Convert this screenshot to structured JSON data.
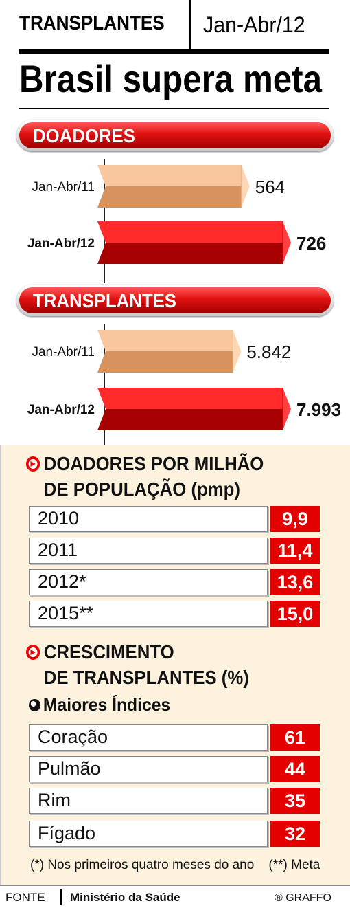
{
  "header": {
    "kicker": "TRANSPLANTES",
    "period": "Jan-Abr/12",
    "headline": "Brasil supera meta"
  },
  "colors": {
    "accent_red": "#e50000",
    "bar_light": "#f2b07e",
    "panel_bg": "#fcf2de"
  },
  "chart_data": [
    {
      "type": "bar",
      "title": "DOADORES",
      "categories": [
        "Jan-Abr/11",
        "Jan-Abr/12"
      ],
      "values": [
        564,
        726
      ],
      "value_labels": [
        "564",
        "726"
      ],
      "orientation": "horizontal",
      "highlight_index": 1
    },
    {
      "type": "bar",
      "title": "TRANSPLANTES",
      "categories": [
        "Jan-Abr/11",
        "Jan-Abr/12"
      ],
      "values": [
        5842,
        7993
      ],
      "value_labels": [
        "5.842",
        "7.993"
      ],
      "orientation": "horizontal",
      "highlight_index": 1
    }
  ],
  "pmp": {
    "title_line1": "DOADORES POR MILHÃO",
    "title_line2": "DE POPULAÇÃO (pmp)",
    "rows": [
      {
        "label": "2010",
        "value": "9,9"
      },
      {
        "label": "2011",
        "value": "11,4"
      },
      {
        "label": "2012*",
        "value": "13,6"
      },
      {
        "label": "2015**",
        "value": "15,0"
      }
    ]
  },
  "growth": {
    "title_line1": "CRESCIMENTO",
    "title_line2": "DE TRANSPLANTES (%)",
    "subtitle": "Maiores Índices",
    "rows": [
      {
        "label": "Coração",
        "value": "61"
      },
      {
        "label": "Pulmão",
        "value": "44"
      },
      {
        "label": "Rim",
        "value": "35"
      },
      {
        "label": "Fígado",
        "value": "32"
      }
    ]
  },
  "footnote": "(*) Nos primeiros quatro meses do ano    (**) Meta",
  "footer": {
    "fonte_label": "FONTE",
    "source": "Ministério da Saúde",
    "credit": "® GRAFFO"
  }
}
